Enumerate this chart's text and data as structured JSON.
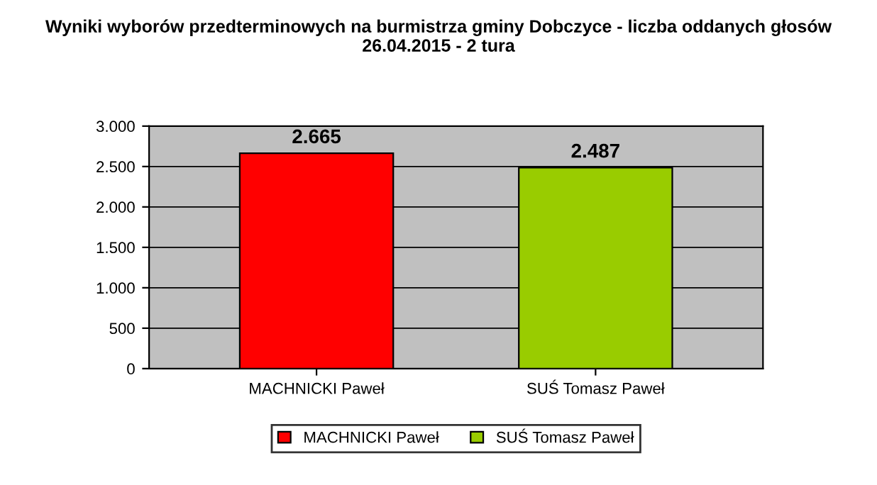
{
  "chart_data": {
    "type": "bar",
    "title": "Wyniki wyborów przedterminowych na burmistrza gminy Dobczyce - liczba oddanych głosów 26.04.2015 - 2 tura",
    "categories": [
      "MACHNICKI Paweł",
      "SUŚ Tomasz Paweł"
    ],
    "series": [
      {
        "name": "MACHNICKI Paweł",
        "color": "#ff0000",
        "values": [
          2665,
          null
        ],
        "value_labels": [
          "2.665",
          null
        ]
      },
      {
        "name": "SUŚ Tomasz Paweł",
        "color": "#99cc00",
        "values": [
          null,
          2487
        ],
        "value_labels": [
          null,
          "2.487"
        ]
      }
    ],
    "ylim": [
      0,
      3000
    ],
    "yticks": [
      {
        "value": 0,
        "label": "0"
      },
      {
        "value": 500,
        "label": "500"
      },
      {
        "value": 1000,
        "label": "1.000"
      },
      {
        "value": 1500,
        "label": "1.500"
      },
      {
        "value": 2000,
        "label": "2.000"
      },
      {
        "value": 2500,
        "label": "2.500"
      },
      {
        "value": 3000,
        "label": "3.000"
      }
    ],
    "grid": "y",
    "legend": "bottom"
  }
}
